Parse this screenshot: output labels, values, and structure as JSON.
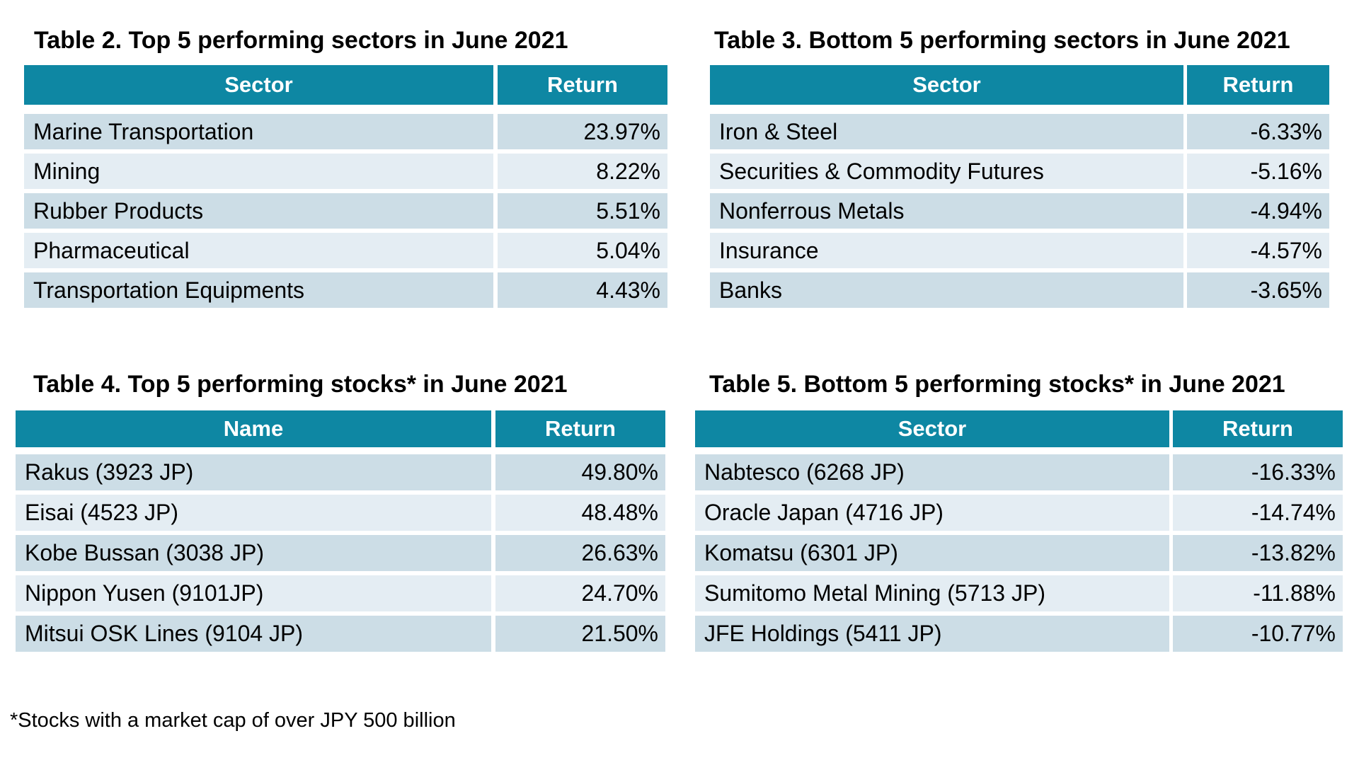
{
  "colors": {
    "header_bg": "#0E87A3",
    "header_text": "#ffffff",
    "row_odd": "#CCDDE6",
    "row_even": "#E4EDF3",
    "body_text": "#000000",
    "background": "#ffffff"
  },
  "tables": [
    {
      "title": "Table 2. Top 5 performing sectors in June 2021",
      "columns": [
        "Sector",
        "Return"
      ],
      "rows": [
        [
          "Marine Transportation",
          "23.97%"
        ],
        [
          "Mining",
          "8.22%"
        ],
        [
          "Rubber Products",
          "5.51%"
        ],
        [
          "Pharmaceutical",
          "5.04%"
        ],
        [
          "Transportation Equipments",
          "4.43%"
        ]
      ]
    },
    {
      "title": "Table 3. Bottom 5 performing sectors in June 2021",
      "columns": [
        "Sector",
        "Return"
      ],
      "rows": [
        [
          "Iron & Steel",
          "-6.33%"
        ],
        [
          "Securities & Commodity Futures",
          "-5.16%"
        ],
        [
          "Nonferrous Metals",
          "-4.94%"
        ],
        [
          "Insurance",
          "-4.57%"
        ],
        [
          "Banks",
          "-3.65%"
        ]
      ]
    },
    {
      "title": "Table 4. Top 5 performing stocks* in June 2021",
      "columns": [
        "Name",
        "Return"
      ],
      "rows": [
        [
          "Rakus (3923 JP)",
          "49.80%"
        ],
        [
          "Eisai (4523 JP)",
          "48.48%"
        ],
        [
          "Kobe Bussan (3038 JP)",
          "26.63%"
        ],
        [
          "Nippon Yusen (9101JP)",
          "24.70%"
        ],
        [
          "Mitsui OSK Lines (9104 JP)",
          "21.50%"
        ]
      ]
    },
    {
      "title": "Table 5. Bottom 5 performing stocks* in June 2021",
      "columns": [
        "Sector",
        "Return"
      ],
      "rows": [
        [
          "Nabtesco (6268 JP)",
          "-16.33%"
        ],
        [
          "Oracle Japan (4716 JP)",
          "-14.74%"
        ],
        [
          "Komatsu (6301 JP)",
          "-13.82%"
        ],
        [
          "Sumitomo Metal Mining (5713 JP)",
          "-11.88%"
        ],
        [
          "JFE Holdings (5411 JP)",
          "-10.77%"
        ]
      ]
    }
  ],
  "footnote": "*Stocks with a market cap of over JPY 500 billion"
}
